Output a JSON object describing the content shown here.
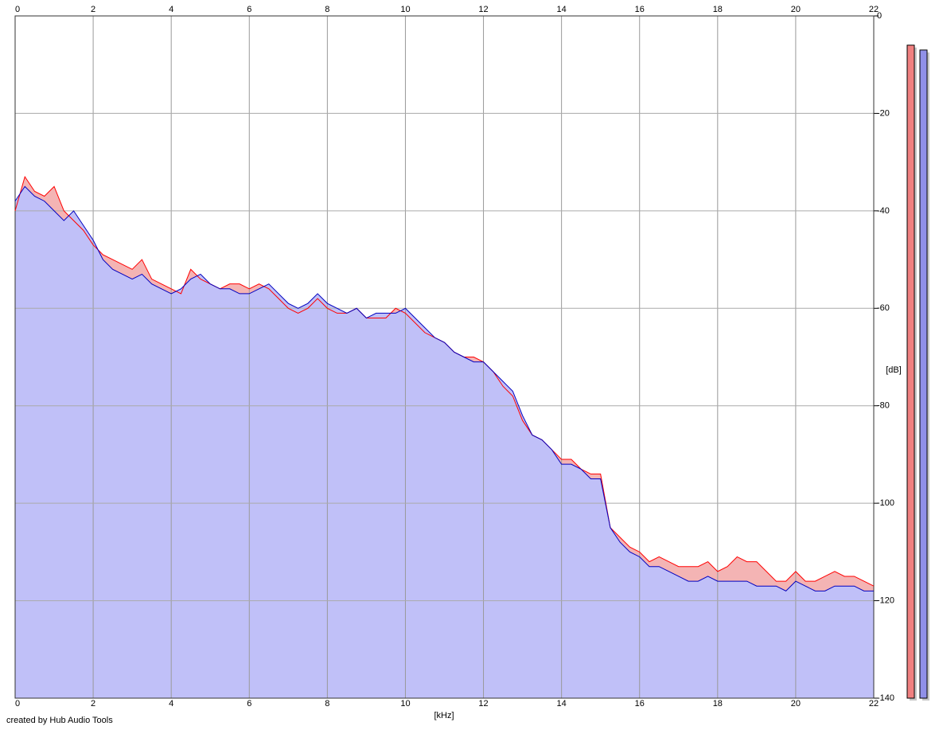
{
  "chart_data": {
    "type": "area",
    "xlabel": "[kHz]",
    "ylabel": "[dB]",
    "footer": "created by Hub Audio Tools",
    "xlim": [
      0,
      22
    ],
    "xticks": [
      0,
      2,
      4,
      6,
      8,
      10,
      12,
      14,
      16,
      18,
      20,
      22
    ],
    "ylim": [
      -140,
      0
    ],
    "yticks": [
      0,
      -20,
      -40,
      -60,
      -80,
      -100,
      -120,
      -140
    ],
    "grid": true,
    "x": [
      0,
      0.25,
      0.5,
      0.75,
      1,
      1.25,
      1.5,
      1.75,
      2,
      2.25,
      2.5,
      2.75,
      3,
      3.25,
      3.5,
      3.75,
      4,
      4.25,
      4.5,
      4.75,
      5,
      5.25,
      5.5,
      5.75,
      6,
      6.25,
      6.5,
      6.75,
      7,
      7.25,
      7.5,
      7.75,
      8,
      8.25,
      8.5,
      8.75,
      9,
      9.25,
      9.5,
      9.75,
      10,
      10.25,
      10.5,
      10.75,
      11,
      11.25,
      11.5,
      11.75,
      12,
      12.25,
      12.5,
      12.75,
      13,
      13.25,
      13.5,
      13.75,
      14,
      14.25,
      14.5,
      14.75,
      15,
      15.25,
      15.5,
      15.75,
      16,
      16.25,
      16.5,
      16.75,
      17,
      17.25,
      17.5,
      17.75,
      18,
      18.25,
      18.5,
      18.75,
      19,
      19.25,
      19.5,
      19.75,
      20,
      20.25,
      20.5,
      20.75,
      21,
      21.25,
      21.5,
      21.75,
      22
    ],
    "series": [
      {
        "color": "#ff0000",
        "fill": "#f4b4b4",
        "values": [
          -40,
          -33,
          -36,
          -37,
          -35,
          -40,
          -42,
          -44,
          -47,
          -49,
          -50,
          -51,
          -52,
          -50,
          -54,
          -55,
          -56,
          -57,
          -52,
          -54,
          -55,
          -56,
          -55,
          -55,
          -56,
          -55,
          -56,
          -58,
          -60,
          -61,
          -60,
          -58,
          -60,
          -61,
          -61,
          -60,
          -62,
          -62,
          -62,
          -60,
          -61,
          -63,
          -65,
          -66,
          -67,
          -69,
          -70,
          -70,
          -71,
          -73,
          -76,
          -78,
          -83,
          -86,
          -87,
          -89,
          -91,
          -91,
          -93,
          -94,
          -94,
          -105,
          -107,
          -109,
          -110,
          -112,
          -111,
          -112,
          -113,
          -113,
          -113,
          -112,
          -114,
          -113,
          -111,
          -112,
          -112,
          -114,
          -116,
          -116,
          -114,
          -116,
          -116,
          -115,
          -114,
          -115,
          -115,
          -116,
          -117
        ]
      },
      {
        "color": "#0000c0",
        "fill": "#c0c0f8",
        "values": [
          -38,
          -35,
          -37,
          -38,
          -40,
          -42,
          -40,
          -43,
          -46,
          -50,
          -52,
          -53,
          -54,
          -53,
          -55,
          -56,
          -57,
          -56,
          -54,
          -53,
          -55,
          -56,
          -56,
          -57,
          -57,
          -56,
          -55,
          -57,
          -59,
          -60,
          -59,
          -57,
          -59,
          -60,
          -61,
          -60,
          -62,
          -61,
          -61,
          -61,
          -60,
          -62,
          -64,
          -66,
          -67,
          -69,
          -70,
          -71,
          -71,
          -73,
          -75,
          -77,
          -82,
          -86,
          -87,
          -89,
          -92,
          -92,
          -93,
          -95,
          -95,
          -105,
          -108,
          -110,
          -111,
          -113,
          -113,
          -114,
          -115,
          -116,
          -116,
          -115,
          -116,
          -116,
          -116,
          -116,
          -117,
          -117,
          -117,
          -118,
          -116,
          -117,
          -118,
          -118,
          -117,
          -117,
          -117,
          -118,
          -118
        ]
      }
    ],
    "meters": [
      {
        "color": "#f08080",
        "value": -6
      },
      {
        "color": "#9090e8",
        "value": -7
      }
    ]
  }
}
